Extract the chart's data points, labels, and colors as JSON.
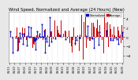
{
  "title": "Wind Speed, Normalized and Average (24 Hours) (New)",
  "title_fontsize": 3.8,
  "bg_color": "#e8e8e8",
  "plot_bg_color": "#ffffff",
  "ylim": [
    -5.5,
    5.5
  ],
  "yticks": [
    -4,
    -2,
    0,
    2,
    4
  ],
  "ytick_fontsize": 3.2,
  "xtick_fontsize": 2.4,
  "legend_blue_label": "Normalized",
  "legend_red_label": "Average",
  "red_color": "#cc0000",
  "blue_color": "#0000bb",
  "n_points": 200,
  "seed": 7
}
